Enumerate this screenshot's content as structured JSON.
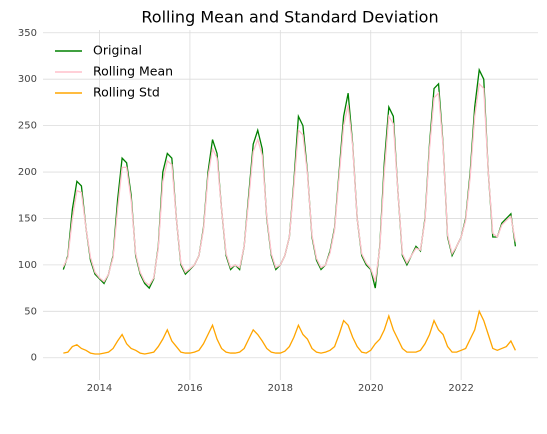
{
  "chart_data": {
    "type": "line",
    "title": "Rolling Mean and Standard Deviation",
    "x": [
      2013.2,
      2013.3,
      2013.4,
      2013.5,
      2013.6,
      2013.7,
      2013.8,
      2013.9,
      2014.0,
      2014.1,
      2014.2,
      2014.3,
      2014.4,
      2014.5,
      2014.6,
      2014.7,
      2014.8,
      2014.9,
      2015.0,
      2015.1,
      2015.2,
      2015.3,
      2015.4,
      2015.5,
      2015.6,
      2015.7,
      2015.8,
      2015.9,
      2016.0,
      2016.1,
      2016.2,
      2016.3,
      2016.4,
      2016.5,
      2016.6,
      2016.7,
      2016.8,
      2016.9,
      2017.0,
      2017.1,
      2017.2,
      2017.3,
      2017.4,
      2017.5,
      2017.6,
      2017.7,
      2017.8,
      2017.9,
      2018.0,
      2018.1,
      2018.2,
      2018.3,
      2018.4,
      2018.5,
      2018.6,
      2018.7,
      2018.8,
      2018.9,
      2019.0,
      2019.1,
      2019.2,
      2019.3,
      2019.4,
      2019.5,
      2019.6,
      2019.7,
      2019.8,
      2019.9,
      2020.0,
      2020.1,
      2020.2,
      2020.3,
      2020.4,
      2020.5,
      2020.6,
      2020.7,
      2020.8,
      2020.9,
      2021.0,
      2021.1,
      2021.2,
      2021.3,
      2021.4,
      2021.5,
      2021.6,
      2021.7,
      2021.8,
      2021.9,
      2022.0,
      2022.1,
      2022.2,
      2022.3,
      2022.4,
      2022.5,
      2022.6,
      2022.7,
      2022.8,
      2022.9,
      2023.0,
      2023.1,
      2023.2
    ],
    "series": [
      {
        "name": "Original",
        "color": "#008000",
        "values": [
          95,
          110,
          160,
          190,
          185,
          140,
          105,
          90,
          85,
          80,
          90,
          110,
          170,
          215,
          210,
          175,
          110,
          90,
          80,
          75,
          85,
          120,
          200,
          220,
          215,
          150,
          100,
          90,
          95,
          100,
          110,
          140,
          200,
          235,
          220,
          160,
          110,
          95,
          100,
          95,
          120,
          175,
          230,
          245,
          225,
          150,
          110,
          95,
          100,
          110,
          130,
          190,
          260,
          250,
          200,
          130,
          105,
          95,
          100,
          115,
          140,
          200,
          260,
          285,
          230,
          150,
          110,
          100,
          95,
          75,
          120,
          210,
          270,
          260,
          180,
          110,
          100,
          110,
          120,
          115,
          150,
          230,
          290,
          295,
          230,
          130,
          110,
          120,
          130,
          150,
          200,
          270,
          310,
          300,
          200,
          130,
          130,
          145,
          150,
          155,
          120
        ]
      },
      {
        "name": "Rolling Mean",
        "color": "#ffc0cb",
        "values": [
          98,
          108,
          150,
          180,
          178,
          140,
          108,
          92,
          86,
          82,
          90,
          108,
          160,
          205,
          205,
          170,
          112,
          92,
          82,
          78,
          86,
          118,
          190,
          212,
          208,
          150,
          102,
          92,
          96,
          100,
          110,
          138,
          195,
          225,
          215,
          160,
          112,
          97,
          100,
          97,
          120,
          170,
          222,
          235,
          218,
          152,
          112,
          97,
          100,
          110,
          130,
          185,
          245,
          240,
          198,
          132,
          107,
          97,
          100,
          113,
          138,
          195,
          250,
          272,
          228,
          150,
          112,
          102,
          96,
          82,
          118,
          200,
          260,
          252,
          180,
          112,
          102,
          110,
          118,
          116,
          148,
          225,
          280,
          285,
          228,
          132,
          112,
          120,
          130,
          148,
          195,
          260,
          295,
          290,
          200,
          134,
          130,
          143,
          148,
          152,
          125
        ]
      },
      {
        "name": "Rolling Std",
        "color": "#ffa500",
        "values": [
          5,
          6,
          12,
          14,
          10,
          8,
          5,
          4,
          4,
          5,
          6,
          10,
          18,
          25,
          15,
          10,
          8,
          5,
          4,
          5,
          6,
          12,
          20,
          30,
          18,
          12,
          6,
          5,
          5,
          6,
          8,
          15,
          25,
          35,
          20,
          10,
          6,
          5,
          5,
          6,
          10,
          20,
          30,
          25,
          18,
          10,
          6,
          5,
          5,
          7,
          12,
          22,
          35,
          25,
          20,
          10,
          6,
          5,
          6,
          8,
          12,
          25,
          40,
          35,
          22,
          12,
          6,
          5,
          8,
          15,
          20,
          30,
          45,
          30,
          20,
          10,
          6,
          6,
          6,
          8,
          15,
          25,
          40,
          30,
          25,
          12,
          6,
          6,
          8,
          10,
          20,
          30,
          50,
          40,
          25,
          10,
          8,
          10,
          12,
          18,
          8
        ]
      }
    ],
    "xlim": [
      2012.75,
      2023.7
    ],
    "xticks": [
      2014,
      2016,
      2018,
      2020,
      2022
    ],
    "ylim": [
      -24,
      353
    ],
    "yticks": [
      0,
      50,
      100,
      150,
      200,
      250,
      300,
      350
    ],
    "grid": true,
    "legend": "upper left"
  }
}
